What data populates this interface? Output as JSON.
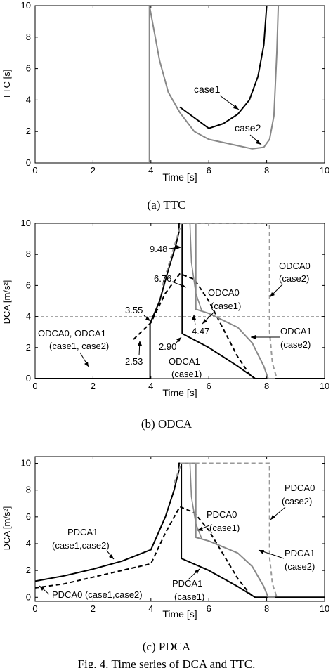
{
  "chart_data": [
    {
      "type": "line",
      "ylabel": "TTC [s]",
      "xlabel": "Time [s]",
      "xlim": [
        0,
        10
      ],
      "ylim": [
        0,
        10
      ],
      "xticks": [
        "0",
        "2",
        "4",
        "6",
        "8",
        "10"
      ],
      "yticks": [
        "0",
        "2",
        "4",
        "6",
        "8",
        "10"
      ],
      "grid": false,
      "caption": "(a) TTC",
      "colors": {
        "case1": "#000000",
        "case2": "#888888"
      },
      "series": [
        {
          "name": "case1",
          "color": "#000000",
          "width": 2,
          "dash": "",
          "points": [
            [
              5.0,
              3.55
            ],
            [
              6.0,
              2.2
            ],
            [
              6.5,
              2.5
            ],
            [
              7.0,
              3.1
            ],
            [
              7.4,
              4.0
            ],
            [
              7.7,
              5.5
            ],
            [
              7.9,
              7.5
            ],
            [
              8.0,
              10.0
            ]
          ]
        },
        {
          "name": "case2",
          "color": "#888888",
          "width": 2,
          "dash": "",
          "points": [
            [
              3.95,
              0.05
            ],
            [
              3.95,
              10.0
            ],
            [
              4.3,
              6.5
            ],
            [
              4.6,
              4.5
            ],
            [
              5.0,
              3.2
            ],
            [
              5.5,
              2.0
            ],
            [
              6.0,
              1.5
            ],
            [
              7.0,
              1.1
            ],
            [
              7.5,
              0.9
            ],
            [
              7.9,
              1.0
            ],
            [
              8.1,
              1.5
            ],
            [
              8.25,
              3.0
            ],
            [
              8.35,
              7.0
            ],
            [
              8.4,
              10.0
            ]
          ]
        }
      ],
      "annotations": [
        {
          "text": "case1",
          "at": [
            5.8,
            4.7
          ],
          "arrow_to": [
            7.0,
            3.2
          ]
        },
        {
          "text": "case2",
          "at": [
            7.1,
            2.1
          ],
          "arrow_to": [
            7.8,
            1.0
          ]
        }
      ]
    },
    {
      "type": "line",
      "ylabel": "DCA [m/s²]",
      "xlabel": "Time [s]",
      "xlim": [
        0,
        10
      ],
      "ylim": [
        0,
        10
      ],
      "xticks": [
        "0",
        "2",
        "4",
        "6",
        "8",
        "10"
      ],
      "yticks": [
        "0",
        "2",
        "4",
        "6",
        "8",
        "10"
      ],
      "grid": false,
      "caption": "(b) ODCA",
      "reference_line": {
        "y": 4.0,
        "color": "#999999",
        "dash": "4 3"
      },
      "series": [
        {
          "name": "ODCA1 (case1)",
          "color": "#000000",
          "width": 2,
          "dash": "",
          "points": [
            [
              0,
              0
            ],
            [
              3.97,
              0
            ],
            [
              3.97,
              3.55
            ],
            [
              4.3,
              5.0
            ],
            [
              4.6,
              7.0
            ],
            [
              4.85,
              8.5
            ],
            [
              4.97,
              9.48
            ],
            [
              4.97,
              10.0
            ],
            [
              5.08,
              10.0
            ],
            [
              5.08,
              2.9
            ],
            [
              6.0,
              2.0
            ],
            [
              7.0,
              0.8
            ],
            [
              7.6,
              0.0
            ],
            [
              10,
              0
            ]
          ]
        },
        {
          "name": "ODCA0 (case1)",
          "color": "#000000",
          "width": 2,
          "dash": "6 4",
          "points": [
            [
              3.4,
              2.53
            ],
            [
              4.0,
              3.6
            ],
            [
              4.5,
              5.5
            ],
            [
              5.0,
              6.76
            ],
            [
              5.5,
              6.4
            ],
            [
              6.0,
              5.0
            ],
            [
              6.5,
              3.2
            ],
            [
              7.0,
              1.4
            ],
            [
              7.4,
              0.3
            ],
            [
              7.6,
              0.0
            ]
          ]
        },
        {
          "name": "ODCA1 (case2)",
          "color": "#888888",
          "width": 2,
          "dash": "",
          "points": [
            [
              5.0,
              10.0
            ],
            [
              5.55,
              10.0
            ],
            [
              5.55,
              4.47
            ],
            [
              6.0,
              4.2
            ],
            [
              7.0,
              3.3
            ],
            [
              7.5,
              2.3
            ],
            [
              7.9,
              0.8
            ],
            [
              8.05,
              0.0
            ],
            [
              8.3,
              0.0
            ]
          ]
        },
        {
          "name": "ODCA0 (case2)",
          "color": "#999999",
          "width": 2,
          "dash": "6 4",
          "points": [
            [
              4.4,
              6.0
            ],
            [
              4.8,
              8.5
            ],
            [
              5.05,
              10.0
            ],
            [
              8.1,
              10.0
            ],
            [
              8.1,
              3.0
            ],
            [
              8.2,
              1.0
            ],
            [
              8.35,
              0.0
            ]
          ]
        },
        {
          "name": "ODCA0 (case2) drop",
          "color": "#888888",
          "width": 1.6,
          "dash": "",
          "points": [
            [
              5.35,
              10.0
            ],
            [
              5.4,
              7.5
            ],
            [
              5.55,
              5.5
            ],
            [
              5.75,
              4.4
            ]
          ]
        }
      ],
      "labels": [
        "ODCA0, ODCA1",
        "(case1, case2)",
        "ODCA0",
        "(case1)",
        "ODCA1",
        "(case1)",
        "ODCA0",
        "(case2)",
        "ODCA1",
        "(case2)"
      ],
      "value_labels": [
        "9.48",
        "6.76",
        "3.55",
        "2.53",
        "2.90",
        "4.47"
      ]
    },
    {
      "type": "line",
      "ylabel": "DCA [m/s²]",
      "xlabel": "Time [s]",
      "xlim": [
        0,
        10
      ],
      "ylim": [
        -0.3,
        10.5
      ],
      "xticks": [
        "0",
        "2",
        "4",
        "6",
        "8",
        "10"
      ],
      "yticks": [
        "0",
        "2",
        "4",
        "6",
        "8",
        "10"
      ],
      "grid": false,
      "caption": "(c) PDCA",
      "series": [
        {
          "name": "PDCA1 (case1,case2)",
          "color": "#000000",
          "width": 2,
          "dash": "",
          "points": [
            [
              0,
              1.2
            ],
            [
              1,
              1.6
            ],
            [
              2,
              2.1
            ],
            [
              3,
              2.7
            ],
            [
              4,
              3.55
            ],
            [
              4.5,
              6.0
            ],
            [
              4.8,
              8.0
            ],
            [
              4.97,
              9.5
            ],
            [
              4.97,
              10.0
            ],
            [
              5.05,
              10.0
            ],
            [
              5.05,
              2.9
            ],
            [
              6.0,
              2.0
            ],
            [
              7.0,
              0.8
            ],
            [
              7.6,
              0.0
            ],
            [
              10,
              0
            ]
          ]
        },
        {
          "name": "PDCA0 (case1,case2)",
          "color": "#000000",
          "width": 2,
          "dash": "6 4",
          "points": [
            [
              0,
              0.7
            ],
            [
              1,
              1.0
            ],
            [
              2,
              1.5
            ],
            [
              3,
              2.0
            ],
            [
              4,
              2.5
            ],
            [
              4.5,
              4.8
            ],
            [
              5.0,
              6.76
            ],
            [
              5.5,
              6.3
            ],
            [
              6.0,
              5.0
            ],
            [
              6.5,
              3.2
            ],
            [
              7.0,
              1.4
            ],
            [
              7.4,
              0.3
            ],
            [
              7.6,
              0.0
            ]
          ]
        },
        {
          "name": "PDCA1 (case2)",
          "color": "#888888",
          "width": 2,
          "dash": "",
          "points": [
            [
              5.0,
              10.0
            ],
            [
              5.55,
              10.0
            ],
            [
              5.55,
              4.47
            ],
            [
              6.0,
              4.2
            ],
            [
              7.0,
              3.3
            ],
            [
              7.5,
              2.3
            ],
            [
              7.9,
              0.8
            ],
            [
              8.05,
              0.0
            ],
            [
              8.3,
              0.0
            ]
          ]
        },
        {
          "name": "PDCA0 (case2)",
          "color": "#999999",
          "width": 2,
          "dash": "6 4",
          "points": [
            [
              4.8,
              8.5
            ],
            [
              5.05,
              10.0
            ],
            [
              8.1,
              10.0
            ],
            [
              8.1,
              3.0
            ],
            [
              8.2,
              1.0
            ],
            [
              8.35,
              0.0
            ]
          ]
        },
        {
          "name": "PDCA0 (case2) drop",
          "color": "#888888",
          "width": 1.6,
          "dash": "",
          "points": [
            [
              5.35,
              10.0
            ],
            [
              5.4,
              7.5
            ],
            [
              5.55,
              5.5
            ],
            [
              5.75,
              4.4
            ]
          ]
        }
      ],
      "labels": [
        "PDCA1",
        "(case1,case2)",
        "PDCA0 (case1,case2)",
        "PDCA0",
        "(case1)",
        "PDCA1",
        "(case1)",
        "PDCA0",
        "(case2)",
        "PDCA1",
        "(case2)"
      ]
    }
  ],
  "figure_caption": "Fig. 4. Time series of DCA and TTC."
}
